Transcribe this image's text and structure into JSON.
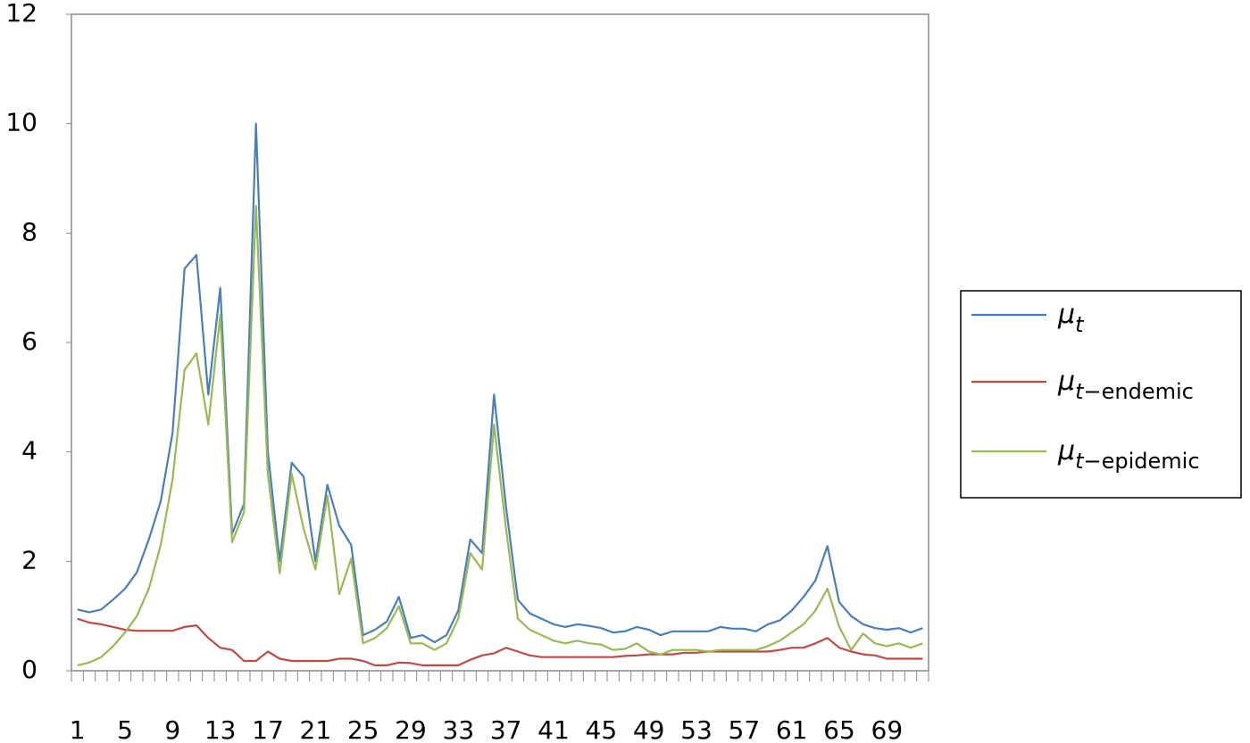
{
  "chart_data": {
    "type": "line",
    "categories": [
      1,
      null,
      null,
      null,
      5,
      null,
      null,
      null,
      9,
      null,
      null,
      null,
      13,
      null,
      null,
      null,
      17,
      null,
      null,
      null,
      21,
      null,
      null,
      null,
      25,
      null,
      null,
      null,
      29,
      null,
      null,
      null,
      33,
      null,
      null,
      null,
      37,
      null,
      null,
      null,
      41,
      null,
      null,
      null,
      45,
      null,
      null,
      null,
      49,
      null,
      null,
      null,
      53,
      null,
      null,
      null,
      57,
      null,
      null,
      null,
      61,
      null,
      null,
      null,
      65,
      null,
      null,
      null,
      69,
      null,
      null,
      null
    ],
    "series": [
      {
        "name": "μt",
        "color": "#4a7ebb",
        "values": [
          1.12,
          1.07,
          1.12,
          1.3,
          1.5,
          1.8,
          2.4,
          3.1,
          4.35,
          7.35,
          7.6,
          5.05,
          7.0,
          2.5,
          3.05,
          10.0,
          4.0,
          2.0,
          3.8,
          3.55,
          2.0,
          3.4,
          2.65,
          2.3,
          0.65,
          0.75,
          0.9,
          1.35,
          0.6,
          0.65,
          0.52,
          0.65,
          1.1,
          2.4,
          2.15,
          5.05,
          3.0,
          1.3,
          1.05,
          0.95,
          0.85,
          0.8,
          0.85,
          0.82,
          0.78,
          0.7,
          0.72,
          0.8,
          0.75,
          0.65,
          0.72,
          0.72,
          0.72,
          0.72,
          0.8,
          0.77,
          0.77,
          0.72,
          0.85,
          0.92,
          1.1,
          1.35,
          1.65,
          2.28,
          1.25,
          1.0,
          0.85,
          0.78,
          0.75,
          0.78,
          0.7,
          0.78
        ]
      },
      {
        "name": "μt−endemic",
        "color": "#be4b48",
        "values": [
          0.95,
          0.88,
          0.85,
          0.8,
          0.75,
          0.73,
          0.73,
          0.73,
          0.73,
          0.8,
          0.83,
          0.6,
          0.42,
          0.38,
          0.18,
          0.18,
          0.35,
          0.22,
          0.18,
          0.18,
          0.18,
          0.18,
          0.22,
          0.22,
          0.18,
          0.1,
          0.1,
          0.15,
          0.14,
          0.1,
          0.1,
          0.1,
          0.1,
          0.2,
          0.28,
          0.32,
          0.42,
          0.35,
          0.28,
          0.25,
          0.25,
          0.25,
          0.25,
          0.25,
          0.25,
          0.25,
          0.27,
          0.28,
          0.3,
          0.3,
          0.3,
          0.33,
          0.33,
          0.35,
          0.35,
          0.35,
          0.35,
          0.35,
          0.35,
          0.38,
          0.42,
          0.42,
          0.5,
          0.6,
          0.42,
          0.35,
          0.3,
          0.28,
          0.22,
          0.22,
          0.22,
          0.22
        ]
      },
      {
        "name": "μt−epidemic",
        "color": "#98b954",
        "values": [
          0.1,
          0.15,
          0.25,
          0.45,
          0.7,
          1.0,
          1.5,
          2.3,
          3.5,
          5.5,
          5.8,
          4.5,
          6.5,
          2.35,
          2.9,
          8.5,
          3.6,
          1.78,
          3.6,
          2.6,
          1.85,
          3.2,
          1.4,
          2.05,
          0.5,
          0.6,
          0.78,
          1.18,
          0.5,
          0.5,
          0.38,
          0.5,
          0.95,
          2.15,
          1.85,
          4.5,
          2.6,
          0.95,
          0.75,
          0.65,
          0.55,
          0.5,
          0.55,
          0.5,
          0.48,
          0.38,
          0.4,
          0.5,
          0.35,
          0.3,
          0.38,
          0.38,
          0.38,
          0.35,
          0.38,
          0.38,
          0.38,
          0.38,
          0.45,
          0.55,
          0.7,
          0.85,
          1.1,
          1.5,
          0.8,
          0.38,
          0.68,
          0.5,
          0.45,
          0.5,
          0.42,
          0.5
        ]
      }
    ],
    "ylim": [
      0,
      12
    ],
    "yticks": [
      0,
      2,
      4,
      6,
      8,
      10,
      12
    ],
    "grid": false,
    "legend": "right"
  }
}
